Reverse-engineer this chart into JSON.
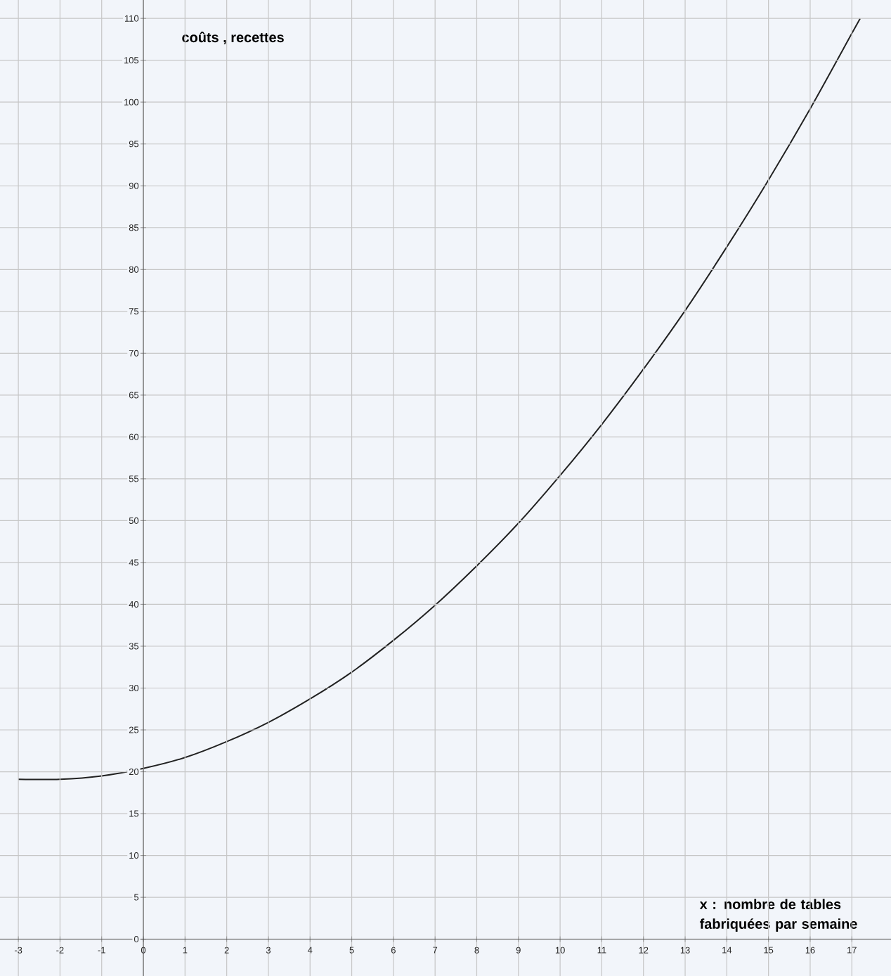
{
  "chart_data": {
    "type": "line",
    "xlabel": "x  : nombre de tables fabriquées par semaine",
    "ylabel": "coûts  , recettes",
    "x": [
      -3,
      -2,
      -1,
      0,
      1,
      2,
      3,
      4,
      5,
      6,
      7,
      8,
      9,
      10,
      11,
      12,
      13,
      14,
      15,
      16,
      17,
      17.2
    ],
    "series": [
      {
        "color": "#222222",
        "values": [
          19.1,
          19.1,
          19.5,
          20.4,
          21.7,
          23.6,
          25.9,
          28.7,
          31.9,
          35.7,
          39.9,
          44.6,
          49.7,
          55.4,
          61.5,
          68.1,
          75.1,
          82.7,
          90.7,
          99.2,
          108.2,
          110
        ]
      }
    ],
    "xlim": [
      -3.44,
      17.94
    ],
    "ylim": [
      -4.4,
      112.2
    ],
    "xticks": [
      -3,
      -2,
      -1,
      0,
      1,
      2,
      3,
      4,
      5,
      6,
      7,
      8,
      9,
      10,
      11,
      12,
      13,
      14,
      15,
      16,
      17
    ],
    "yticks": [
      0,
      5,
      10,
      15,
      20,
      25,
      30,
      35,
      40,
      45,
      50,
      55,
      60,
      65,
      70,
      75,
      80,
      85,
      90,
      95,
      100,
      105,
      110
    ],
    "grid": true,
    "marker": "none",
    "line_style": "solid"
  }
}
